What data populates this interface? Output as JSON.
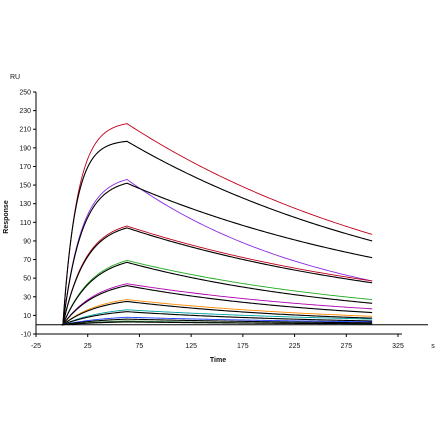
{
  "chart_data": {
    "type": "line",
    "title": "",
    "xlabel": "Time",
    "ylabel": "Response",
    "x_unit": "s",
    "y_unit": "RU",
    "xlim": [
      -25,
      325
    ],
    "ylim": [
      -10,
      250
    ],
    "x_ticks": [
      "-25",
      "25",
      "75",
      "125",
      "175",
      "225",
      "275",
      "325"
    ],
    "y_ticks": [
      "-10",
      "10",
      "30",
      "50",
      "70",
      "90",
      "110",
      "130",
      "150",
      "170",
      "190",
      "210",
      "230",
      "250"
    ],
    "x_tick_values": [
      -25,
      25,
      75,
      125,
      175,
      225,
      275,
      325
    ],
    "y_tick_values": [
      -10,
      10,
      30,
      50,
      70,
      90,
      110,
      130,
      150,
      170,
      190,
      210,
      230,
      250
    ],
    "baseline_y": 0,
    "grid": false,
    "legend": "none",
    "curve_model": {
      "association_start_x": 1,
      "dissociation_start_x": 63,
      "end_x": 300
    },
    "series": [
      {
        "color": "#c0001a",
        "peak": 216,
        "end": 97,
        "ka": 0.07,
        "kd": 0.0033
      },
      {
        "color": "#000000",
        "peak": 197,
        "end": 90,
        "ka": 0.08,
        "kd": 0.0033
      },
      {
        "color": "#8a2be2",
        "peak": 156,
        "end": 47,
        "ka": 0.055,
        "kd": 0.0052
      },
      {
        "color": "#000000",
        "peak": 152,
        "end": 72,
        "ka": 0.055,
        "kd": 0.0032
      },
      {
        "color": "#c0001a",
        "peak": 106,
        "end": 47,
        "ka": 0.045,
        "kd": 0.0034
      },
      {
        "color": "#000000",
        "peak": 104,
        "end": 45,
        "ka": 0.045,
        "kd": 0.0035
      },
      {
        "color": "#22aa22",
        "peak": 69,
        "end": 27,
        "ka": 0.035,
        "kd": 0.004
      },
      {
        "color": "#000000",
        "peak": 67,
        "end": 23,
        "ka": 0.035,
        "kd": 0.0045
      },
      {
        "color": "#b000b0",
        "peak": 44,
        "end": 17,
        "ka": 0.03,
        "kd": 0.004
      },
      {
        "color": "#000000",
        "peak": 42,
        "end": 13,
        "ka": 0.03,
        "kd": 0.005
      },
      {
        "color": "#ff8c00",
        "peak": 27,
        "end": 9,
        "ka": 0.028,
        "kd": 0.0046
      },
      {
        "color": "#000000",
        "peak": 25,
        "end": 7,
        "ka": 0.028,
        "kd": 0.0054
      },
      {
        "color": "#00a0a0",
        "peak": 16,
        "end": 6,
        "ka": 0.025,
        "kd": 0.004
      },
      {
        "color": "#000000",
        "peak": 14,
        "end": 4,
        "ka": 0.025,
        "kd": 0.0053
      },
      {
        "color": "#1e3cff",
        "peak": 8,
        "end": 3,
        "ka": 0.022,
        "kd": 0.004
      },
      {
        "color": "#000000",
        "peak": 6,
        "end": 2,
        "ka": 0.022,
        "kd": 0.0046
      },
      {
        "color": "#2a7f2a",
        "peak": 4,
        "end": 1,
        "ka": 0.02,
        "kd": 0.005
      },
      {
        "color": "#000000",
        "peak": 3,
        "end": 1,
        "ka": 0.02,
        "kd": 0.005
      }
    ]
  }
}
